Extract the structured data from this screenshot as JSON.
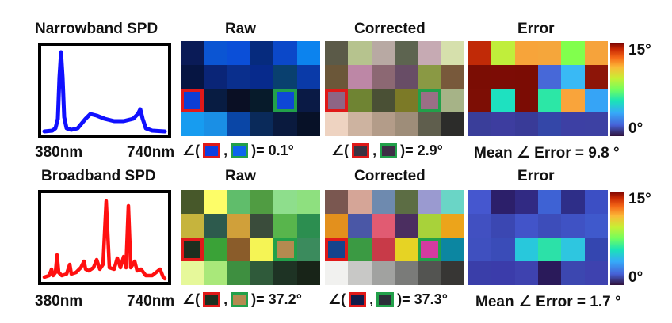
{
  "colors": {
    "red_box": "#e01919",
    "green_box": "#22a04a",
    "narrow_spd": "#1010ff",
    "broad_spd": "#ff1010"
  },
  "narrowband": {
    "spd_title": "Narrowband SPD",
    "raw_title": "Raw",
    "corrected_title": "Corrected",
    "error_title": "Error",
    "axis_min": "380nm",
    "axis_max": "740nm",
    "cbar_max": "15°",
    "cbar_min": "0°",
    "raw_angle": {
      "prefix": "∠(",
      "sep": ",",
      "suffix": ")= 0.1°",
      "swatch_a": "#0d3fe0",
      "swatch_b": "#0d64ee"
    },
    "corrected_angle": {
      "prefix": "∠(",
      "sep": ",",
      "suffix": ")= 2.9°",
      "swatch_a": "#3a3342",
      "swatch_b": "#3e2e45"
    },
    "mean_error": "Mean ∠ Error = 9.8 °",
    "raw_grid": [
      [
        "#0a1b57",
        "#0b55d3",
        "#0b4fd8",
        "#062b7e",
        "#0b48c9",
        "#0c83ee"
      ],
      [
        "#061542",
        "#0a2577",
        "#0a2f8d",
        "#072a8c",
        "#09406f",
        "#0a3aa8"
      ],
      [
        "#0c3ed5",
        "#081c42",
        "#0a0f24",
        "#071b2b",
        "#0e47d6",
        "#0a1a45"
      ],
      [
        "#179cf0",
        "#1a8fe5",
        "#0a46a6",
        "#0a2a5a",
        "#0a1a3e",
        "#071127"
      ]
    ],
    "corrected_grid": [
      [
        "#5b5a48",
        "#b6c38e",
        "#b8a9a3",
        "#5d6450",
        "#c6aab3",
        "#d6e0ac"
      ],
      [
        "#6b5739",
        "#bd87a6",
        "#8c6873",
        "#684d66",
        "#8a9944",
        "#78593b"
      ],
      [
        "#8e6585",
        "#6f8433",
        "#4a5035",
        "#7c7a27",
        "#9b6f86",
        "#a6b387"
      ],
      [
        "#eed3c1",
        "#cdb3a0",
        "#b39c89",
        "#9e8d79",
        "#5f5e4d",
        "#2c2c2a"
      ]
    ],
    "error_grid": [
      [
        "#c12a07",
        "#c0ee3b",
        "#f7a43a",
        "#f5a63b",
        "#81ff4d",
        "#f6a33b"
      ],
      [
        "#7b0d04",
        "#7c0c05",
        "#7b0c04",
        "#4768d8",
        "#39b9f5",
        "#8d1508"
      ],
      [
        "#7d0e05",
        "#1ee1c0",
        "#7b0c04",
        "#2ce7a6",
        "#f9a43b",
        "#36a4f6"
      ],
      [
        "#3a3e9a",
        "#3d3d9f",
        "#393b98",
        "#3447a8",
        "#3d40a4",
        "#3d41a3"
      ]
    ]
  },
  "broadband": {
    "spd_title": "Broadband SPD",
    "raw_title": "Raw",
    "corrected_title": "Corrected",
    "error_title": "Error",
    "axis_min": "380nm",
    "axis_max": "740nm",
    "cbar_max": "15°",
    "cbar_min": "0°",
    "raw_angle": {
      "prefix": "∠(",
      "sep": ",",
      "suffix": ")= 37.2°",
      "swatch_a": "#1c3020",
      "swatch_b": "#b48a50"
    },
    "corrected_angle": {
      "prefix": "∠(",
      "sep": ",",
      "suffix": ")= 37.3°",
      "swatch_a": "#111b4a",
      "swatch_b": "#2b2e38"
    },
    "mean_error": "Mean ∠ Error = 1.7 °",
    "raw_grid": [
      [
        "#47582a",
        "#fdfd68",
        "#60bd6b",
        "#509c42",
        "#8ede8c",
        "#8ee07f"
      ],
      [
        "#c6b43d",
        "#2d5a4d",
        "#d0a03a",
        "#3a4c3b",
        "#58b54c",
        "#2c8e50"
      ],
      [
        "#1d2e1f",
        "#3aa237",
        "#8a5c2a",
        "#f5f455",
        "#b48a50",
        "#3b8b5d"
      ],
      [
        "#e6f89a",
        "#a9e87a",
        "#3e8f40",
        "#2f5a3a",
        "#1e3324",
        "#182418"
      ]
    ],
    "corrected_grid": [
      [
        "#7a5750",
        "#d5a597",
        "#6e8aaf",
        "#5c6d44",
        "#9a9ad0",
        "#6ad5c6"
      ],
      [
        "#e3901d",
        "#4a57a6",
        "#e15b72",
        "#4b2e60",
        "#a8d23a",
        "#eca41b"
      ],
      [
        "#15448c",
        "#3b9a43",
        "#c83a48",
        "#e6d324",
        "#d43aa0",
        "#0c86a1"
      ],
      [
        "#f1f1ef",
        "#c8c8c6",
        "#a1a2a0",
        "#7a7b79",
        "#535451",
        "#373634"
      ]
    ],
    "error_grid": [
      [
        "#4557cf",
        "#2c1f6a",
        "#312a83",
        "#3e62d4",
        "#2e2e88",
        "#3c4fc4"
      ],
      [
        "#4150c1",
        "#3b47b2",
        "#4254c9",
        "#3d4dba",
        "#3f52c4",
        "#3f59cc"
      ],
      [
        "#3f50bf",
        "#3a4cb8",
        "#28c8dc",
        "#2ce1a8",
        "#2ec6e0",
        "#3446b0"
      ],
      [
        "#3a3ea9",
        "#3b3caa",
        "#3e42af",
        "#2a1a5a",
        "#3c47b0",
        "#3e42af"
      ]
    ]
  }
}
